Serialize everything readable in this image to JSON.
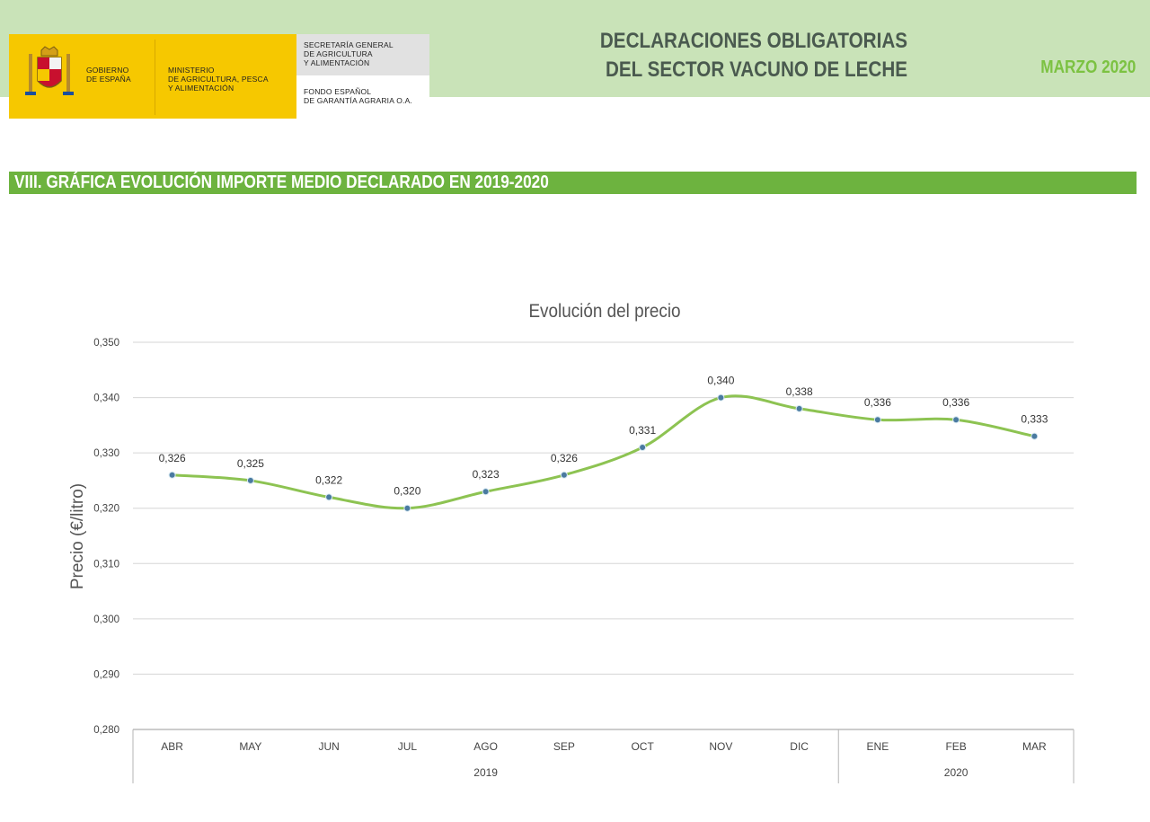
{
  "header": {
    "logo_gov_line1": "GOBIERNO",
    "logo_gov_line2": "DE ESPAÑA",
    "logo_min_line1": "MINISTERIO",
    "logo_min_line2": "DE AGRICULTURA, PESCA",
    "logo_min_line3": "Y ALIMENTACIÓN",
    "logo_sec_line1": "SECRETARÍA GENERAL",
    "logo_sec_line2": "DE AGRICULTURA",
    "logo_sec_line3": "Y ALIMENTACIÓN",
    "logo_fondo_line1": "FONDO ESPAÑOL",
    "logo_fondo_line2": "DE GARANTÍA AGRARIA O.A.",
    "title_line1": "DECLARACIONES OBLIGATORIAS",
    "title_line2": "DEL SECTOR VACUNO DE LECHE",
    "date": "MARZO 2020"
  },
  "section": {
    "title": "VIII. GRÁFICA EVOLUCIÓN IMPORTE MEDIO DECLARADO EN 2019-2020"
  },
  "colors": {
    "header_band": "#c9e3b8",
    "section_bar": "#6db33f",
    "line": "#8dc352",
    "marker": "#4a7aa0",
    "date_text": "#7cc242"
  },
  "chart_data": {
    "type": "line",
    "title": "Evolución del precio",
    "ylabel": "Precio (€/litro)",
    "xlabel": "",
    "ylim": [
      0.28,
      0.35
    ],
    "yticks": [
      "0,280",
      "0,290",
      "0,300",
      "0,310",
      "0,320",
      "0,330",
      "0,340",
      "0,350"
    ],
    "categories": [
      "ABR",
      "MAY",
      "JUN",
      "JUL",
      "AGO",
      "SEP",
      "OCT",
      "NOV",
      "DIC",
      "ENE",
      "FEB",
      "MAR"
    ],
    "values": [
      0.326,
      0.325,
      0.322,
      0.32,
      0.323,
      0.326,
      0.331,
      0.34,
      0.338,
      0.336,
      0.336,
      0.333
    ],
    "labels": [
      "0,326",
      "0,325",
      "0,322",
      "0,320",
      "0,323",
      "0,326",
      "0,331",
      "0,340",
      "0,338",
      "0,336",
      "0,336",
      "0,333"
    ],
    "groups": [
      {
        "label": "2019",
        "count": 9
      },
      {
        "label": "2020",
        "count": 3
      }
    ],
    "grid": true,
    "legend": "none",
    "smooth": true
  }
}
